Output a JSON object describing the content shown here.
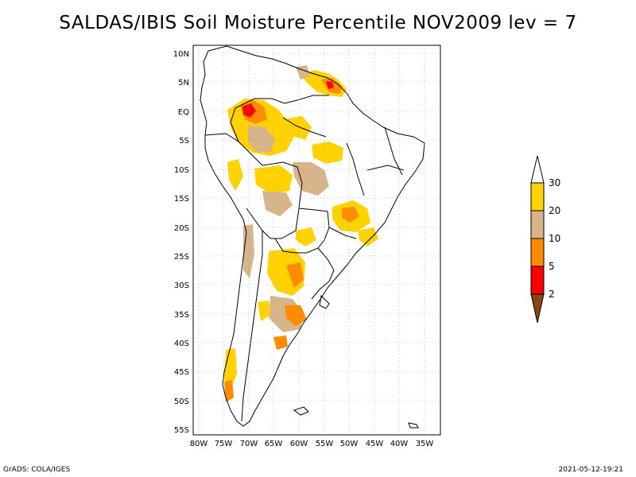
{
  "title": "SALDAS/IBIS Soil Moisture Percentile NOV2009 lev = 7",
  "map": {
    "lat_labels": [
      "10N",
      "5N",
      "EQ",
      "5S",
      "10S",
      "15S",
      "20S",
      "25S",
      "30S",
      "35S",
      "40S",
      "45S",
      "50S",
      "55S"
    ],
    "lon_labels": [
      "80W",
      "75W",
      "70W",
      "65W",
      "60W",
      "55W",
      "50W",
      "45W",
      "40W",
      "35W"
    ],
    "region": "South America",
    "gridlines": "dotted"
  },
  "legend": {
    "labels": [
      "30",
      "20",
      "10",
      "5",
      "2"
    ],
    "colors": {
      "above_30": "#ffffff",
      "c20_30": "#ffd200",
      "c10_20": "#d8b48a",
      "c5_10": "#ff8c00",
      "c2_5": "#ff0000",
      "below_2": "#8b4513"
    }
  },
  "footer": {
    "left": "GrADS: COLA/IGES",
    "right": "2021-05-12-19:21"
  }
}
